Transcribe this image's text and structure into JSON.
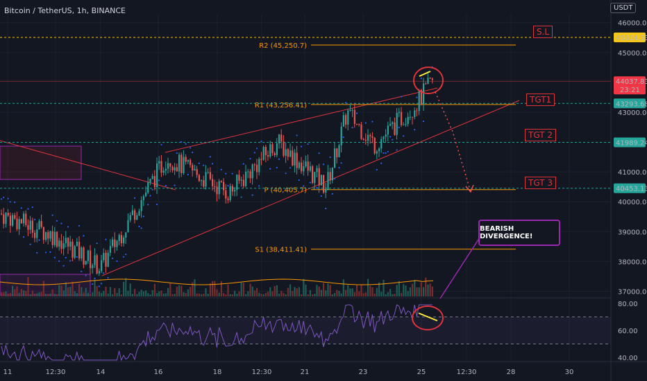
{
  "header": {
    "title": "Bitcoin / TetherUS, 1h, BINANCE",
    "currency": "USDT"
  },
  "chart_data": {
    "type": "candlestick",
    "symbol": "Bitcoin / TetherUS",
    "interval": "1h",
    "exchange": "BINANCE",
    "currency": "USDT",
    "ylim": [
      37000,
      46500
    ],
    "y_ticks": [
      "46000.00",
      "45000.00",
      "43000.00",
      "41000.00",
      "40000.00",
      "39000.00",
      "38000.00",
      "37000.00"
    ],
    "x_ticks": [
      "11",
      "12:30",
      "14",
      "16",
      "18",
      "12:30",
      "21",
      "23",
      "25",
      "12:30",
      "28",
      "30"
    ],
    "price_path": [
      {
        "x": "11",
        "y": 39300
      },
      {
        "x": "12:30",
        "y": 38800
      },
      {
        "x": "14",
        "y": 37800
      },
      {
        "x": "16",
        "y": 41200
      },
      {
        "x": "18",
        "y": 40400
      },
      {
        "x": "12:30",
        "y": 41900
      },
      {
        "x": "21",
        "y": 40700
      },
      {
        "x": "23",
        "y": 42800
      },
      {
        "x": "25",
        "y": 43300
      },
      {
        "x": "25",
        "y": 44037.83
      }
    ],
    "price_labels": [
      {
        "text": "45504.53",
        "price": 45504.53,
        "color": "#f5c518",
        "text_color": "#131722"
      },
      {
        "text": "44037.83",
        "price": 44037.83,
        "color": "#f23645",
        "text_color": "#ffffff",
        "sub": "23:21"
      },
      {
        "text": "43293.68",
        "price": 43293.68,
        "color": "#26a69a",
        "text_color": "#131722"
      },
      {
        "text": "41989.24",
        "price": 41989.24,
        "color": "#26a69a",
        "text_color": "#131722"
      },
      {
        "text": "40453.13",
        "price": 40453.13,
        "color": "#26a69a",
        "text_color": "#131722"
      }
    ],
    "pivot_lines": [
      {
        "label": "R2 (45,250.7)",
        "price": 45250.7
      },
      {
        "label": "R1 (43,256.41)",
        "price": 43256.41
      },
      {
        "label": "P (40,405.7)",
        "price": 40405.7
      },
      {
        "label": "S1 (38,411.41)",
        "price": 38411.41
      }
    ],
    "target_labels": [
      "S.L",
      "TGT1",
      "TGT 2",
      "TGT 3"
    ],
    "annotation": "BEARISH DIVERGENCE!",
    "rsi": {
      "ylim": [
        35,
        85
      ],
      "ticks": [
        "80.00",
        "60.00",
        "40.00"
      ],
      "bands": [
        70,
        50
      ]
    }
  },
  "colors": {
    "background": "#131722",
    "up": "#26a69a",
    "down": "#ef5350",
    "pivot": "#ff9800",
    "rsi": "#7e57c2",
    "channel": "#e0343b"
  }
}
